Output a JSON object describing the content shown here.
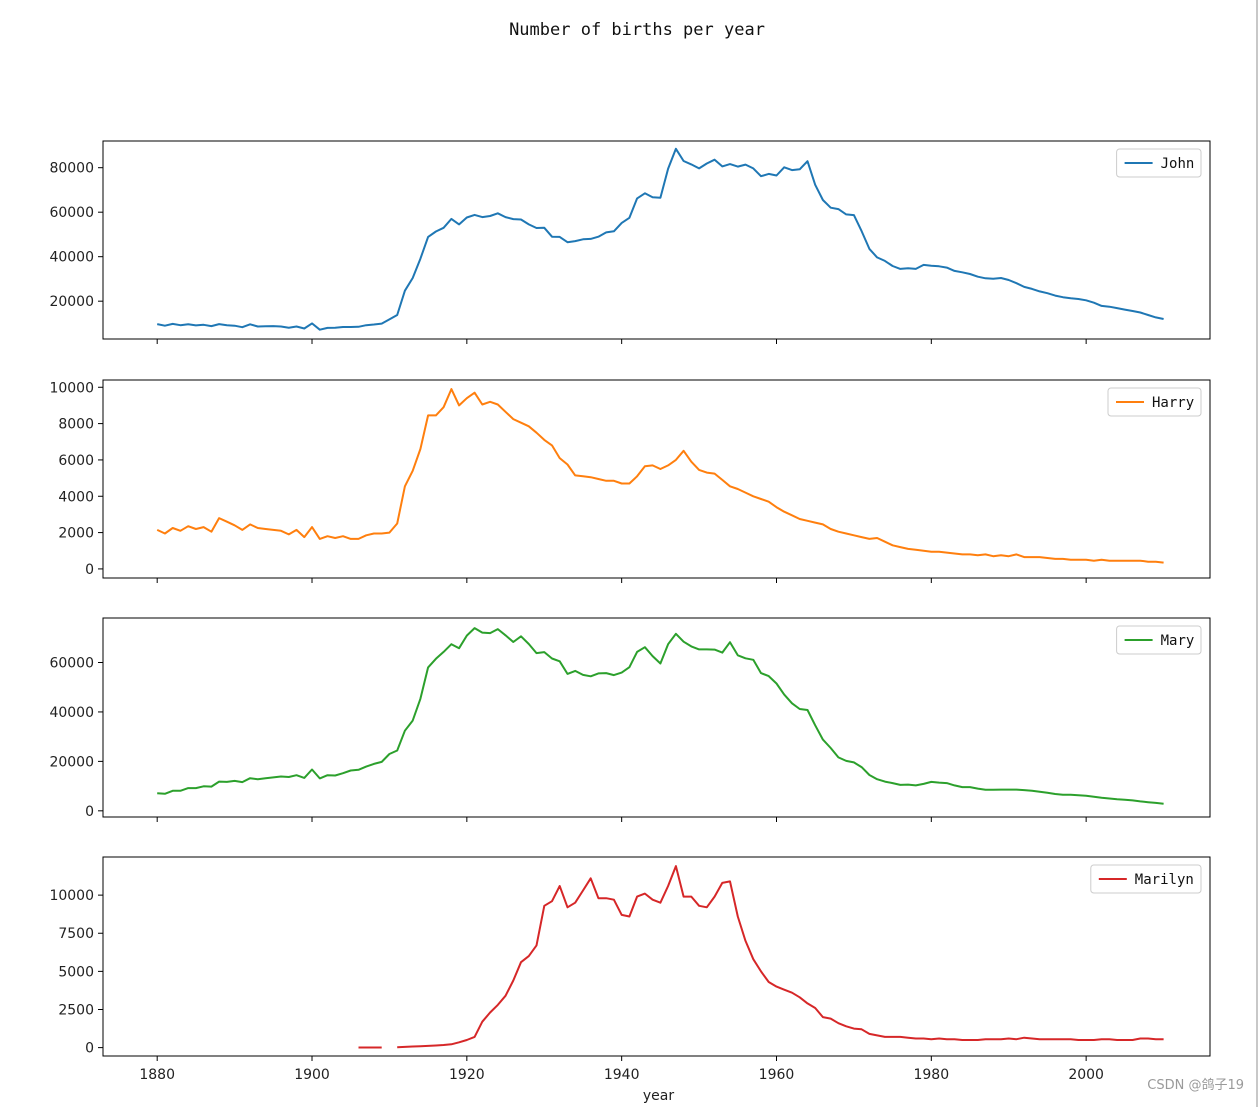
{
  "figure": {
    "title": "Number of births per year",
    "watermark": "CSDN @鸽子19"
  },
  "chart_data": [
    {
      "type": "line",
      "title": "",
      "xlabel": "",
      "ylabel": "",
      "xlim": [
        1873,
        2016
      ],
      "ylim": [
        3000,
        92000
      ],
      "yticks": [
        20000,
        40000,
        60000,
        80000
      ],
      "xticks": [
        1880,
        1900,
        1920,
        1940,
        1960,
        1980,
        2000
      ],
      "show_xtick_labels": false,
      "legend": "top-right",
      "series": [
        {
          "name": "John",
          "color": "#1f77b4",
          "x_start": 1880,
          "values": [
            9700,
            9000,
            9800,
            9200,
            9600,
            9100,
            9400,
            8800,
            9700,
            9200,
            9000,
            8300,
            9600,
            8600,
            8700,
            8800,
            8600,
            8100,
            8600,
            7700,
            10000,
            7200,
            8000,
            8100,
            8400,
            8400,
            8500,
            9200,
            9500,
            9900,
            11800,
            13800,
            24700,
            30400,
            39100,
            48900,
            51300,
            53000,
            57000,
            54500,
            57600,
            58800,
            57800,
            58300,
            59500,
            57800,
            56900,
            56700,
            54500,
            52900,
            53000,
            49000,
            48900,
            46500,
            47000,
            47800,
            48000,
            49000,
            50900,
            51400,
            55200,
            57500,
            66200,
            68500,
            66700,
            66500,
            79500,
            88500,
            83000,
            81500,
            79700,
            81900,
            83600,
            80600,
            81600,
            80500,
            81400,
            79700,
            76200,
            77200,
            76500,
            80200,
            78900,
            79300,
            82900,
            72300,
            65500,
            62000,
            61400,
            59000,
            58700,
            51500,
            43500,
            39700,
            38100,
            35800,
            34500,
            34800,
            34500,
            36300,
            35900,
            35700,
            35100,
            33600,
            33000,
            32200,
            31000,
            30300,
            30100,
            30400,
            29500,
            28100,
            26400,
            25500,
            24400,
            23600,
            22500,
            21800,
            21300,
            21000,
            20400,
            19300,
            17900,
            17500,
            16900,
            16200,
            15600,
            14900,
            13800,
            12700,
            12000
          ]
        }
      ]
    },
    {
      "type": "line",
      "title": "",
      "xlabel": "",
      "ylabel": "",
      "xlim": [
        1873,
        2016
      ],
      "ylim": [
        -500,
        10400
      ],
      "yticks": [
        0,
        2000,
        4000,
        6000,
        8000,
        10000
      ],
      "xticks": [
        1880,
        1900,
        1920,
        1940,
        1960,
        1980,
        2000
      ],
      "show_xtick_labels": false,
      "legend": "top-right",
      "series": [
        {
          "name": "Harry",
          "color": "#ff7f0e",
          "x_start": 1880,
          "values": [
            2150,
            1950,
            2250,
            2100,
            2350,
            2200,
            2300,
            2050,
            2800,
            2600,
            2400,
            2150,
            2450,
            2250,
            2200,
            2150,
            2100,
            1900,
            2150,
            1750,
            2300,
            1650,
            1800,
            1700,
            1800,
            1650,
            1650,
            1850,
            1950,
            1950,
            2000,
            2500,
            4550,
            5400,
            6600,
            8450,
            8450,
            8900,
            9900,
            9000,
            9400,
            9700,
            9050,
            9200,
            9050,
            8650,
            8250,
            8050,
            7850,
            7500,
            7100,
            6800,
            6100,
            5750,
            5150,
            5100,
            5050,
            4950,
            4850,
            4850,
            4700,
            4700,
            5100,
            5650,
            5700,
            5500,
            5700,
            6000,
            6500,
            5900,
            5450,
            5300,
            5250,
            4900,
            4550,
            4400,
            4200,
            4000,
            3850,
            3700,
            3400,
            3150,
            2950,
            2750,
            2650,
            2550,
            2450,
            2200,
            2050,
            1950,
            1850,
            1750,
            1650,
            1700,
            1500,
            1300,
            1200,
            1100,
            1050,
            1000,
            950,
            950,
            900,
            850,
            800,
            800,
            750,
            800,
            700,
            750,
            700,
            800,
            650,
            650,
            650,
            600,
            550,
            550,
            500,
            500,
            500,
            450,
            500,
            450,
            450,
            450,
            450,
            450,
            400,
            400,
            350
          ]
        }
      ]
    },
    {
      "type": "line",
      "title": "",
      "xlabel": "",
      "ylabel": "",
      "xlim": [
        1873,
        2016
      ],
      "ylim": [
        -2500,
        78000
      ],
      "yticks": [
        0,
        20000,
        40000,
        60000
      ],
      "xticks": [
        1880,
        1900,
        1920,
        1940,
        1960,
        1980,
        2000
      ],
      "show_xtick_labels": false,
      "legend": "top-right",
      "series": [
        {
          "name": "Mary",
          "color": "#2ca02c",
          "x_start": 1880,
          "values": [
            7100,
            6900,
            8100,
            8100,
            9200,
            9200,
            9900,
            9800,
            11800,
            11700,
            12100,
            11600,
            13200,
            12800,
            13200,
            13500,
            13900,
            13700,
            14400,
            13300,
            16700,
            13100,
            14400,
            14300,
            15200,
            16300,
            16600,
            17900,
            19000,
            19800,
            23000,
            24400,
            32400,
            36500,
            45300,
            58000,
            61500,
            64300,
            67400,
            65800,
            70900,
            73900,
            72100,
            71900,
            73500,
            71000,
            68300,
            70600,
            67500,
            63800,
            64200,
            61600,
            60500,
            55400,
            56600,
            55000,
            54400,
            55600,
            55700,
            54900,
            55900,
            58100,
            64300,
            66200,
            62600,
            59600,
            67400,
            71600,
            68400,
            66500,
            65300,
            65300,
            65200,
            64000,
            68200,
            62900,
            61700,
            61100,
            55700,
            54500,
            51500,
            47000,
            43500,
            41200,
            40800,
            34600,
            28800,
            25400,
            21600,
            20200,
            19600,
            17700,
            14500,
            12800,
            11800,
            11200,
            10500,
            10600,
            10300,
            10900,
            11700,
            11400,
            11200,
            10300,
            9600,
            9600,
            9000,
            8500,
            8500,
            8600,
            8600,
            8600,
            8400,
            8100,
            7700,
            7300,
            6800,
            6500,
            6500,
            6300,
            6100,
            5700,
            5300,
            5000,
            4700,
            4500,
            4200,
            3800,
            3500,
            3200,
            2900
          ]
        }
      ]
    },
    {
      "type": "line",
      "title": "",
      "xlabel": "year",
      "ylabel": "",
      "xlim": [
        1873,
        2016
      ],
      "ylim": [
        -550,
        12500
      ],
      "yticks": [
        0,
        2500,
        5000,
        7500,
        10000
      ],
      "xticks": [
        1880,
        1900,
        1920,
        1940,
        1960,
        1980,
        2000
      ],
      "show_xtick_labels": true,
      "legend": "top-right",
      "series": [
        {
          "name": "Marilyn",
          "color": "#d62728",
          "x_start": 1880,
          "values": [
            null,
            null,
            null,
            null,
            null,
            null,
            null,
            null,
            null,
            null,
            null,
            null,
            null,
            null,
            null,
            null,
            null,
            null,
            null,
            null,
            null,
            null,
            null,
            null,
            null,
            null,
            5,
            5,
            5,
            5,
            null,
            30,
            50,
            70,
            90,
            110,
            140,
            170,
            220,
            350,
            500,
            700,
            1700,
            2300,
            2800,
            3400,
            4400,
            5600,
            6000,
            6700,
            9300,
            9600,
            10600,
            9200,
            9500,
            10300,
            11100,
            9800,
            9800,
            9700,
            8700,
            8600,
            9900,
            10100,
            9700,
            9500,
            10600,
            11900,
            9900,
            9900,
            9300,
            9200,
            9900,
            10800,
            10900,
            8600,
            7000,
            5800,
            5000,
            4300,
            4000,
            3800,
            3600,
            3300,
            2900,
            2600,
            2000,
            1900,
            1600,
            1400,
            1250,
            1200,
            900,
            800,
            700,
            700,
            700,
            650,
            600,
            600,
            550,
            600,
            550,
            550,
            500,
            500,
            500,
            550,
            550,
            550,
            600,
            550,
            650,
            600,
            550,
            550,
            550,
            550,
            550,
            500,
            500,
            500,
            550,
            550,
            500,
            500,
            500,
            600,
            600,
            550,
            550
          ]
        }
      ]
    }
  ]
}
